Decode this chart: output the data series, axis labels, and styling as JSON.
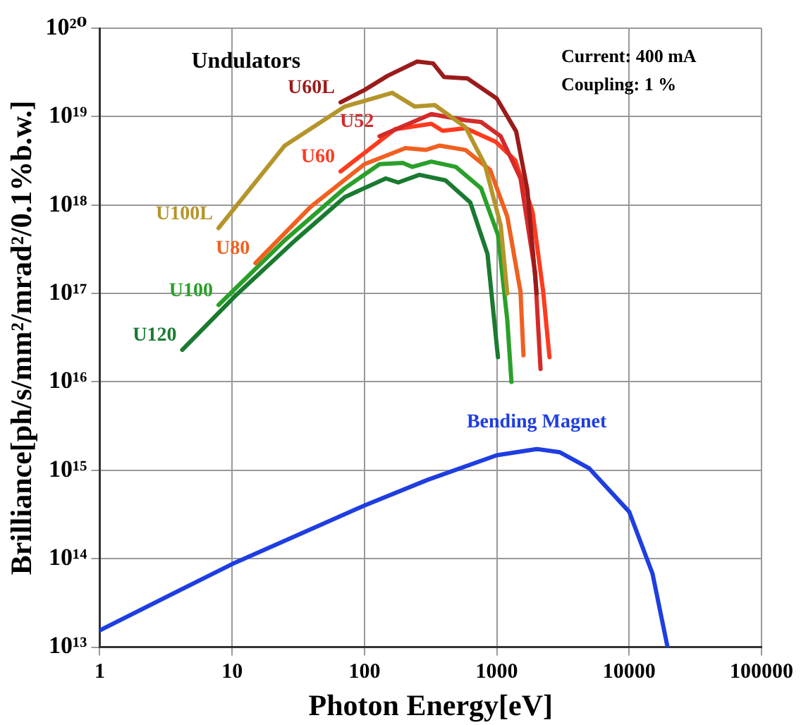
{
  "chart_data": {
    "type": "line",
    "xlabel": "Photon Energy[eV]",
    "ylabel": "Brilliance[ph/s/mm²/mrad²/0.1%b.w.]",
    "log": "xy",
    "grid": true,
    "legend": false,
    "marker": "none",
    "line_style": "solid",
    "xlim": [
      1,
      100000
    ],
    "xticks": [
      1,
      10,
      100,
      1000,
      10000,
      100000
    ],
    "ylim": [
      10000000000000.0,
      1e+20
    ],
    "yticks": [
      {
        "value": 10000000000000.0,
        "label": "10¹³"
      },
      {
        "value": 100000000000000.0,
        "label": "10¹⁴"
      },
      {
        "value": 1000000000000000.0,
        "label": "10¹⁵"
      },
      {
        "value": 1e+16,
        "label": "10¹⁶"
      },
      {
        "value": 1e+17,
        "label": "10¹⁷"
      },
      {
        "value": 1e+18,
        "label": "10¹⁸"
      },
      {
        "value": 1e+19,
        "label": "10¹⁹"
      },
      {
        "value": 1e+20,
        "label": "10²⁰"
      }
    ],
    "annotations": [
      "Undulators",
      "Current: 400 mA",
      "Coupling: 1 %"
    ],
    "series": [
      {
        "name": "U60L",
        "color": "#9b1b1b",
        "x": [
          66,
          100,
          150,
          250,
          330,
          400,
          600,
          1000,
          1400,
          1700,
          2000
        ],
        "values": [
          1.45e+19,
          2e+19,
          2.9e+19,
          4.2e+19,
          4e+19,
          2.8e+19,
          2.7e+19,
          1.6e+19,
          6.8e+18,
          1.5e+18,
          1e+17
        ]
      },
      {
        "name": "U100L",
        "color": "#b5952a",
        "x": [
          7.9,
          25,
          71,
          162,
          240,
          340,
          580,
          810,
          1070,
          1200
        ],
        "values": [
          5.5e+17,
          4.7e+18,
          1.3e+19,
          1.86e+19,
          1.3e+19,
          1.35e+19,
          7.6e+18,
          2.9e+18,
          5.9e+17,
          1e+17
        ]
      },
      {
        "name": "U52",
        "color": "#d42a2a",
        "x": [
          130,
          320,
          580,
          760,
          1070,
          1510,
          1950,
          2140
        ],
        "values": [
          6e+18,
          1.07e+19,
          9.1e+18,
          8.7e+18,
          6e+18,
          2e+18,
          1.7e+17,
          1.4e+16
        ]
      },
      {
        "name": "U60",
        "color": "#ff3a1e",
        "x": [
          66,
          170,
          320,
          390,
          580,
          980,
          1380,
          1860,
          2240,
          2500
        ],
        "values": [
          2.4e+18,
          7.2e+18,
          8.3e+18,
          6.9e+18,
          7.4e+18,
          5.2e+18,
          3.2e+18,
          8.5e+17,
          1.05e+17,
          1.9e+16
        ]
      },
      {
        "name": "U80",
        "color": "#f06020",
        "x": [
          15,
          39,
          100,
          204,
          290,
          370,
          580,
          890,
          1200,
          1510,
          1590
        ],
        "values": [
          2.2e+17,
          9.5e+17,
          2.9e+18,
          4.4e+18,
          4.2e+18,
          4.7e+18,
          4.2e+18,
          2.5e+18,
          7.4e+17,
          1.05e+17,
          2e+16
        ]
      },
      {
        "name": "U100",
        "color": "#2aa02a",
        "x": [
          7.9,
          25,
          71,
          130,
          195,
          230,
          320,
          490,
          760,
          1020,
          1200,
          1290
        ],
        "values": [
          7.4e+16,
          4e+17,
          1.55e+18,
          2.9e+18,
          3e+18,
          2.7e+18,
          3.1e+18,
          2.7e+18,
          1.55e+18,
          4.6e+17,
          5e+16,
          1e+16
        ]
      },
      {
        "name": "U120",
        "color": "#1a7a30",
        "x": [
          4.2,
          10.5,
          30,
          71,
          145,
          180,
          260,
          410,
          630,
          850,
          1020
        ],
        "values": [
          2.3e+16,
          9.3e+16,
          4e+17,
          1.23e+18,
          2e+18,
          1.8e+18,
          2.2e+18,
          1.9e+18,
          1.07e+18,
          2.8e+17,
          1.9e+16
        ]
      },
      {
        "name": "Bending Magnet",
        "color": "#1f3ee0",
        "x": [
          1,
          10,
          100,
          300,
          1000,
          2000,
          3000,
          5000,
          10000,
          15000,
          19500
        ],
        "values": [
          15500000000000.0,
          87000000000000.0,
          400000000000000.0,
          780000000000000.0,
          1480000000000000.0,
          1740000000000000.0,
          1600000000000000.0,
          1050000000000000.0,
          340000000000000.0,
          68000000000000.0,
          10000000000000.0
        ]
      }
    ]
  }
}
